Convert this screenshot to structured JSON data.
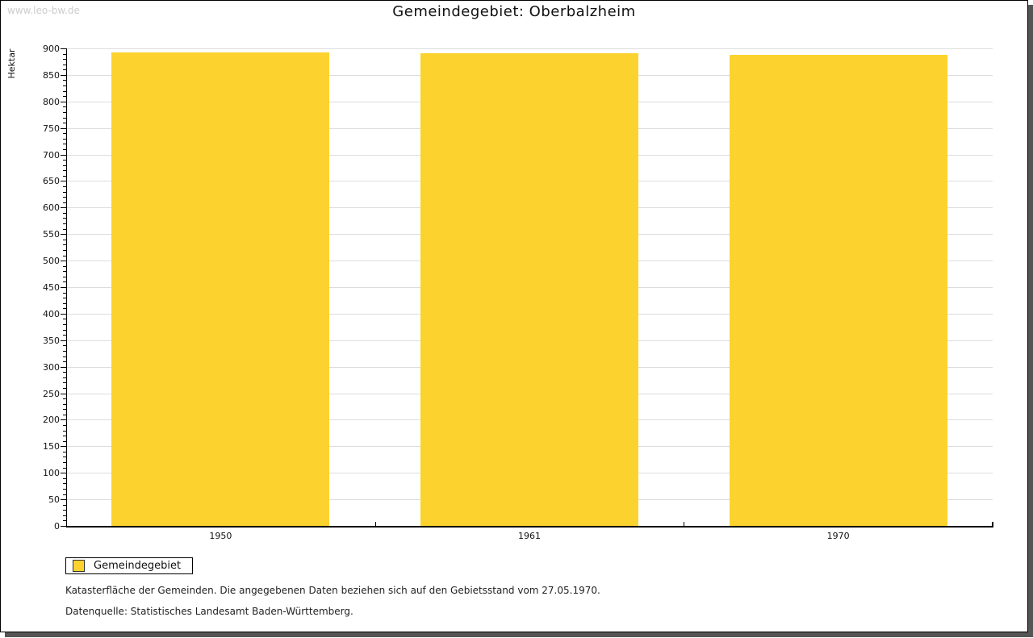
{
  "watermark": "www.leo-bw.de",
  "title": "Gemeindegebiet: Oberbalzheim",
  "chart_data": {
    "type": "bar",
    "title": "Gemeindegebiet: Oberbalzheim",
    "categories": [
      "1950",
      "1961",
      "1970"
    ],
    "series": [
      {
        "name": "Gemeindegebiet",
        "values": [
          892,
          891,
          888
        ]
      }
    ],
    "xlabel": "",
    "ylabel": "Hektar",
    "ylim": [
      0,
      900
    ],
    "ytick_major": 50,
    "ytick_minor": 10,
    "grid": true,
    "legend_position": "bottom-left",
    "bar_color": "#FCD32E"
  },
  "legend": {
    "items": [
      {
        "label": "Gemeindegebiet",
        "color": "#FCD32E"
      }
    ]
  },
  "footer": {
    "line1": "Katasterfläche der Gemeinden. Die angegebenen Daten beziehen sich auf den Gebietsstand vom 27.05.1970.",
    "line2": "Datenquelle: Statistisches Landesamt Baden-Württemberg."
  },
  "colors": {
    "bar": "#FCD32E",
    "grid": "#dddddd",
    "axis": "#000000",
    "watermark": "#cccccc",
    "frame_shadow": "#555555"
  }
}
